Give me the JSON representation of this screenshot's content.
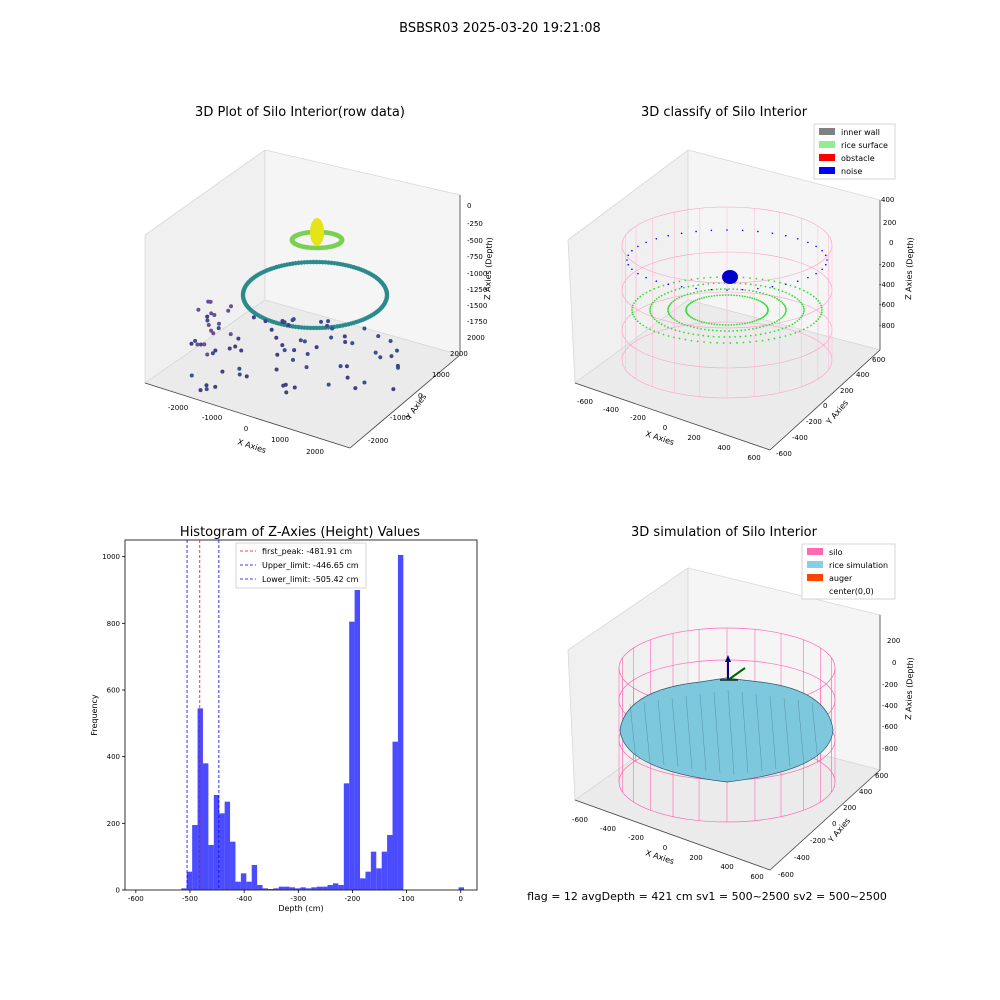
{
  "suptitle": "BSBSR03 2025-03-20 19:21:08",
  "footer": "flag = 12   avgDepth = 421 cm  sv1 = 500~2500  sv2 = 500~2500",
  "panels": {
    "raw": {
      "title": "3D Plot of Silo Interior(row data)",
      "xlabel": "X Axies",
      "ylabel": "Y Axies",
      "zlabel": "Z Axies (Depth)",
      "xticks": [
        "-2000",
        "-1000",
        "0",
        "1000",
        "2000"
      ],
      "yticks": [
        "-2000",
        "-1000",
        "0",
        "1000",
        "2000"
      ],
      "zticks": [
        "0",
        "-250",
        "-500",
        "-750",
        "-1000",
        "-1250",
        "-1500",
        "-1750",
        "2000"
      ]
    },
    "classify": {
      "title": "3D classify of Silo Interior",
      "xlabel": "X Axies",
      "ylabel": "Y Axies",
      "zlabel": "Z Axies (Depth)",
      "xticks": [
        "-600",
        "-400",
        "-200",
        "0",
        "200",
        "400",
        "600"
      ],
      "yticks": [
        "-600",
        "-400",
        "-200",
        "0",
        "200",
        "400",
        "600"
      ],
      "zticks": [
        "400",
        "200",
        "0",
        "-200",
        "-400",
        "-600",
        "-800"
      ],
      "legend": [
        {
          "label": "inner wall",
          "color": "#808080"
        },
        {
          "label": "rice surface",
          "color": "#90ee90"
        },
        {
          "label": "obstacle",
          "color": "#ff0000"
        },
        {
          "label": "noise",
          "color": "#0000ff"
        }
      ]
    },
    "simulation": {
      "title": "3D simulation of Silo Interior",
      "xlabel": "X Axies",
      "ylabel": "Y Axies",
      "zlabel": "Z Axies (Depth)",
      "xticks": [
        "-600",
        "-400",
        "-200",
        "0",
        "200",
        "400",
        "600"
      ],
      "yticks": [
        "-600",
        "-400",
        "-200",
        "0",
        "200",
        "400",
        "600"
      ],
      "zticks": [
        "200",
        "0",
        "-200",
        "-400",
        "-600",
        "-800"
      ],
      "legend": [
        {
          "label": "silo",
          "color": "#ff69b4"
        },
        {
          "label": "rice simulation",
          "color": "#87ceeb"
        },
        {
          "label": "auger",
          "color": "#ff4500"
        },
        {
          "label": "center(0,0)",
          "color": ""
        }
      ]
    }
  },
  "chart_data": {
    "type": "bar",
    "title": "Histogram of Z-Axies (Height) Values",
    "xlabel": "Depth (cm)",
    "ylabel": "Frequency",
    "xlim": [
      -620,
      30
    ],
    "ylim": [
      0,
      1050
    ],
    "xticks": [
      -600,
      -500,
      -400,
      -300,
      -200,
      -100,
      0
    ],
    "yticks": [
      0,
      200,
      400,
      600,
      800,
      1000
    ],
    "bar_color": "#0000ff",
    "bin_width": 10,
    "bins": [
      [
        -516,
        5
      ],
      [
        -506,
        55
      ],
      [
        -496,
        195
      ],
      [
        -486,
        545
      ],
      [
        -476,
        380
      ],
      [
        -466,
        135
      ],
      [
        -456,
        285
      ],
      [
        -446,
        230
      ],
      [
        -436,
        265
      ],
      [
        -426,
        145
      ],
      [
        -416,
        25
      ],
      [
        -406,
        50
      ],
      [
        -396,
        25
      ],
      [
        -386,
        75
      ],
      [
        -376,
        15
      ],
      [
        -366,
        5
      ],
      [
        -356,
        3
      ],
      [
        -346,
        5
      ],
      [
        -336,
        10
      ],
      [
        -326,
        10
      ],
      [
        -316,
        8
      ],
      [
        -306,
        5
      ],
      [
        -296,
        8
      ],
      [
        -286,
        5
      ],
      [
        -276,
        8
      ],
      [
        -266,
        10
      ],
      [
        -256,
        10
      ],
      [
        -246,
        15
      ],
      [
        -236,
        20
      ],
      [
        -226,
        15
      ],
      [
        -216,
        320
      ],
      [
        -206,
        805
      ],
      [
        -196,
        900
      ],
      [
        -186,
        35
      ],
      [
        -176,
        55
      ],
      [
        -166,
        115
      ],
      [
        -156,
        65
      ],
      [
        -146,
        115
      ],
      [
        -136,
        165
      ],
      [
        -126,
        445
      ],
      [
        -116,
        1005
      ],
      [
        -106,
        0
      ],
      [
        -4,
        8
      ]
    ],
    "vlines": [
      {
        "label": "first_peak: -481.91 cm",
        "x": -481.91,
        "color": "#ff0000"
      },
      {
        "label": "Upper_limit: -446.65 cm",
        "x": -446.65,
        "color": "#0000ff"
      },
      {
        "label": "Lower_limit: -505.42 cm",
        "x": -505.42,
        "color": "#0000ff"
      }
    ],
    "legend_position": "top-center"
  }
}
